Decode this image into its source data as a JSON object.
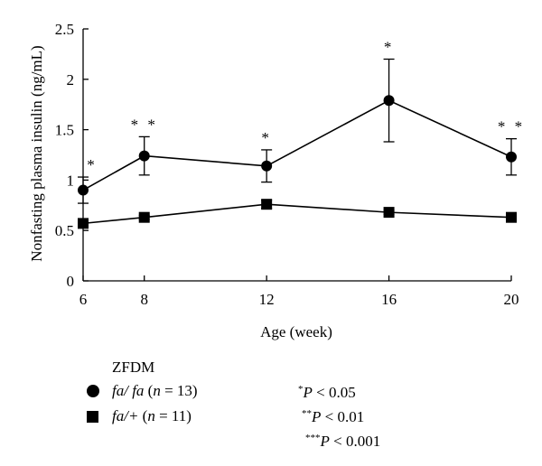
{
  "chart_data": {
    "type": "line",
    "xlabel": "Age (week)",
    "ylabel": "Nonfasting plasma insulin (ng/mL)",
    "x": [
      6,
      8,
      12,
      16,
      20
    ],
    "x_ticks": [
      "6",
      "8",
      "12",
      "16",
      "20"
    ],
    "xlim": [
      6,
      20
    ],
    "y_ticks": [
      "0",
      "0.5",
      "1",
      "1.5",
      "2",
      "2.5"
    ],
    "ylim": [
      0,
      2.5
    ],
    "grid": false,
    "legend_position": "bottom-left",
    "series": [
      {
        "name": "fa/fa (n = 13)",
        "marker": "circle",
        "color": "#000000",
        "values": [
          0.9,
          1.24,
          1.14,
          1.79,
          1.23
        ],
        "errors": [
          0.13,
          0.19,
          0.16,
          0.41,
          0.18
        ]
      },
      {
        "name": "fa/+ (n = 11)",
        "marker": "square",
        "color": "#000000",
        "values": [
          0.57,
          0.63,
          0.76,
          0.68,
          0.63
        ],
        "errors": [
          0.04,
          0.02,
          0.04,
          0.02,
          0.02
        ]
      }
    ],
    "significance": [
      "*",
      "**",
      "*",
      "*",
      "**"
    ]
  },
  "legend": {
    "title": "ZFDM",
    "items": [
      {
        "genotype": "fa/ fa",
        "n_prefix": " (",
        "n_var": "n",
        "n_value": " = 13)"
      },
      {
        "genotype": "fa/+",
        "n_prefix": " (",
        "n_var": "n",
        "n_value": " = 11)"
      }
    ]
  },
  "notes": [
    {
      "stars": "*",
      "var": "P",
      "text": " < 0.05"
    },
    {
      "stars": "**",
      "var": "P",
      "text": " < 0.01"
    },
    {
      "stars": "***",
      "var": "P",
      "text": " < 0.001"
    }
  ]
}
